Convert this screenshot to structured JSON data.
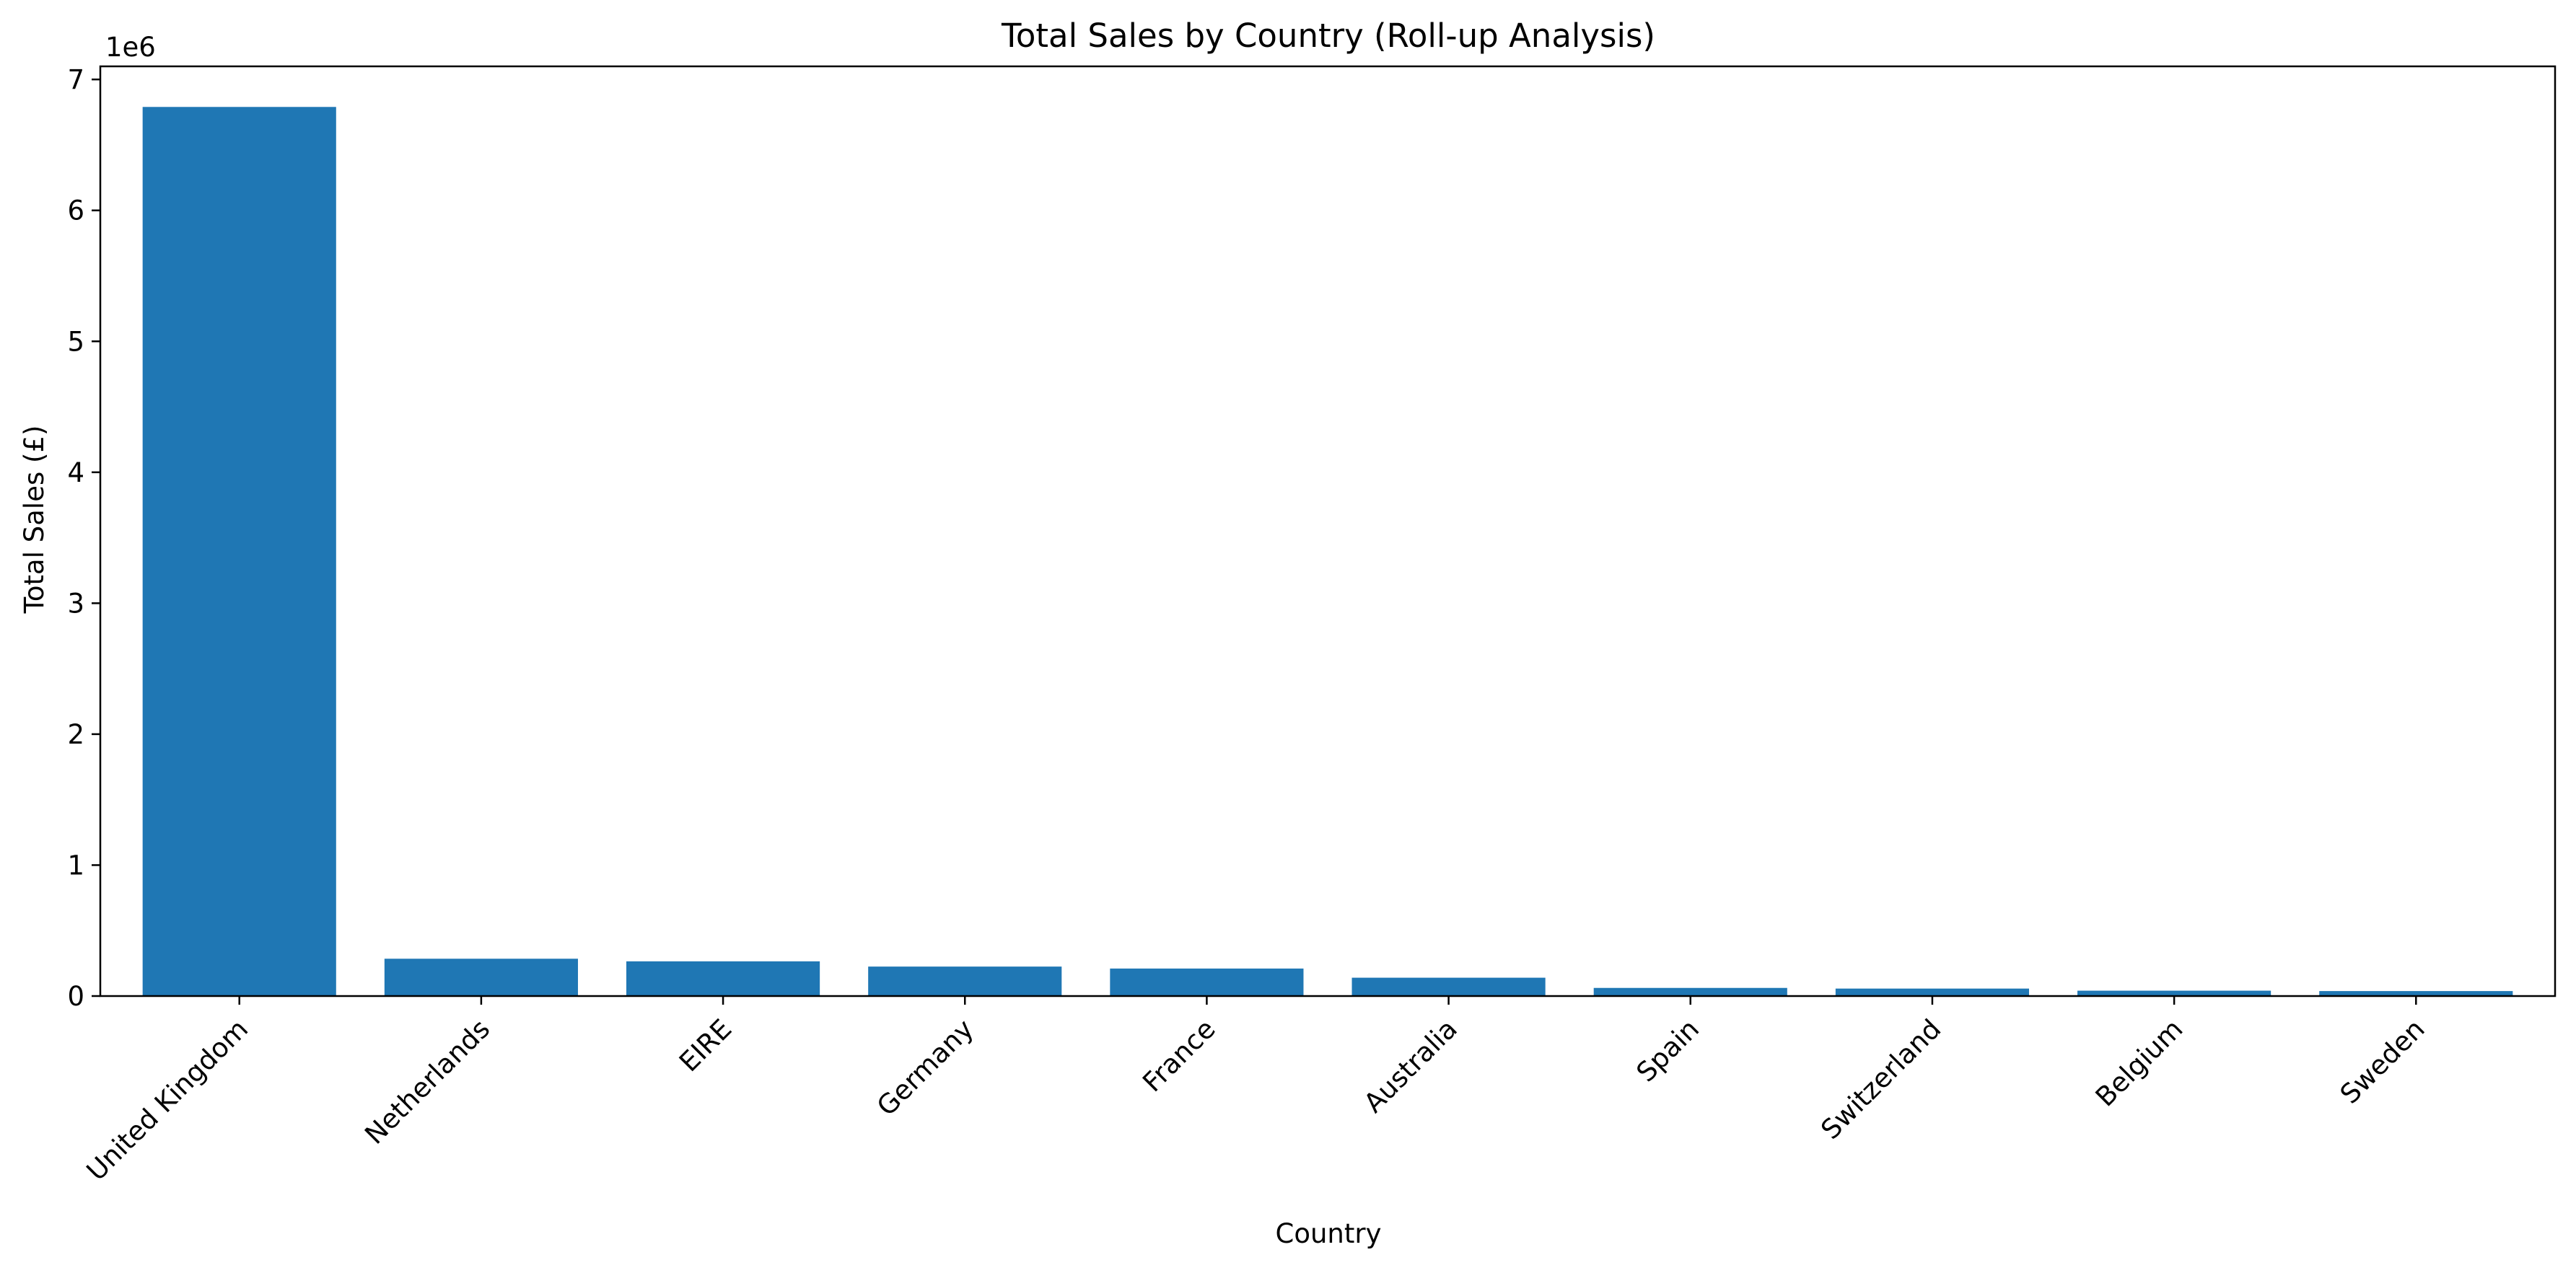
{
  "chart_data": {
    "type": "bar",
    "title": "Total Sales by Country (Roll-up Analysis)",
    "xlabel": "Country",
    "ylabel": "Total Sales (£)",
    "y_offset_label": "1e6",
    "categories": [
      "United Kingdom",
      "Netherlands",
      "EIRE",
      "Germany",
      "France",
      "Australia",
      "Spain",
      "Switzerland",
      "Belgium",
      "Sweden"
    ],
    "values": [
      6790000,
      285000,
      265000,
      225000,
      210000,
      140000,
      62000,
      57000,
      41000,
      38000
    ],
    "ylim": [
      0,
      7100000
    ],
    "yticks": [
      0,
      1000000,
      2000000,
      3000000,
      4000000,
      5000000,
      6000000,
      7000000
    ],
    "ytick_labels": [
      "0",
      "1",
      "2",
      "3",
      "4",
      "5",
      "6",
      "7"
    ],
    "bar_color": "#1f77b4",
    "grid": false,
    "legend": "none"
  }
}
